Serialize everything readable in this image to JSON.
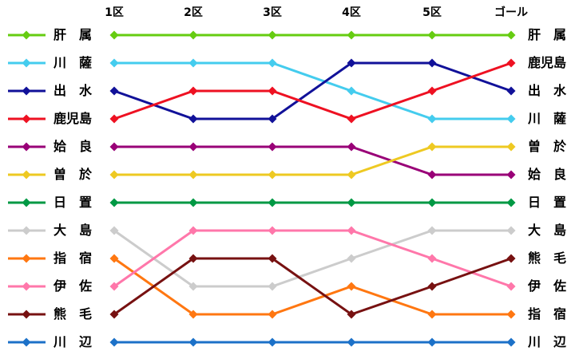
{
  "chart_data": {
    "type": "line",
    "subtype": "bump-rank-chart",
    "title": "",
    "x": [
      "1区",
      "2区",
      "3区",
      "4区",
      "5区",
      "ゴール"
    ],
    "ylabel": "",
    "xlabel": "",
    "rank_range": [
      1,
      12
    ],
    "grid": false,
    "legend_position": "left-inline",
    "series": [
      {
        "name": "肝属",
        "color": "#66CC11",
        "ranks": [
          1,
          1,
          1,
          1,
          1,
          1
        ]
      },
      {
        "name": "川薩",
        "color": "#44CCEE",
        "ranks": [
          2,
          2,
          2,
          3,
          4,
          4
        ]
      },
      {
        "name": "出水",
        "color": "#111199",
        "ranks": [
          3,
          4,
          4,
          2,
          2,
          3
        ]
      },
      {
        "name": "鹿児島",
        "color": "#EE1122",
        "ranks": [
          4,
          3,
          3,
          4,
          3,
          2
        ]
      },
      {
        "name": "姶良",
        "color": "#990077",
        "ranks": [
          5,
          5,
          5,
          5,
          6,
          6
        ]
      },
      {
        "name": "曽於",
        "color": "#EEC922",
        "ranks": [
          6,
          6,
          6,
          6,
          5,
          5
        ]
      },
      {
        "name": "日置",
        "color": "#009944",
        "ranks": [
          7,
          7,
          7,
          7,
          7,
          7
        ]
      },
      {
        "name": "大島",
        "color": "#CCCCCC",
        "ranks": [
          8,
          10,
          10,
          9,
          8,
          8
        ]
      },
      {
        "name": "指宿",
        "color": "#FF7711",
        "ranks": [
          9,
          11,
          11,
          10,
          11,
          11
        ]
      },
      {
        "name": "伊佐",
        "color": "#FF77AA",
        "ranks": [
          10,
          8,
          8,
          8,
          9,
          10
        ]
      },
      {
        "name": "熊毛",
        "color": "#771111",
        "ranks": [
          11,
          9,
          9,
          11,
          10,
          9
        ]
      },
      {
        "name": "川辺",
        "color": "#1C71C8",
        "ranks": [
          12,
          12,
          12,
          12,
          12,
          12
        ]
      }
    ],
    "left_axis_order": [
      "肝属",
      "川薩",
      "出水",
      "鹿児島",
      "姶良",
      "曽於",
      "日置",
      "大島",
      "指宿",
      "伊佐",
      "熊毛",
      "川辺"
    ],
    "right_axis_order": [
      "肝属",
      "鹿児島",
      "出水",
      "川薩",
      "曽於",
      "姶良",
      "日置",
      "大島",
      "熊毛",
      "伊佐",
      "指宿",
      "川辺"
    ],
    "text_color": "#000000",
    "background_color": "#FFFFFF"
  }
}
